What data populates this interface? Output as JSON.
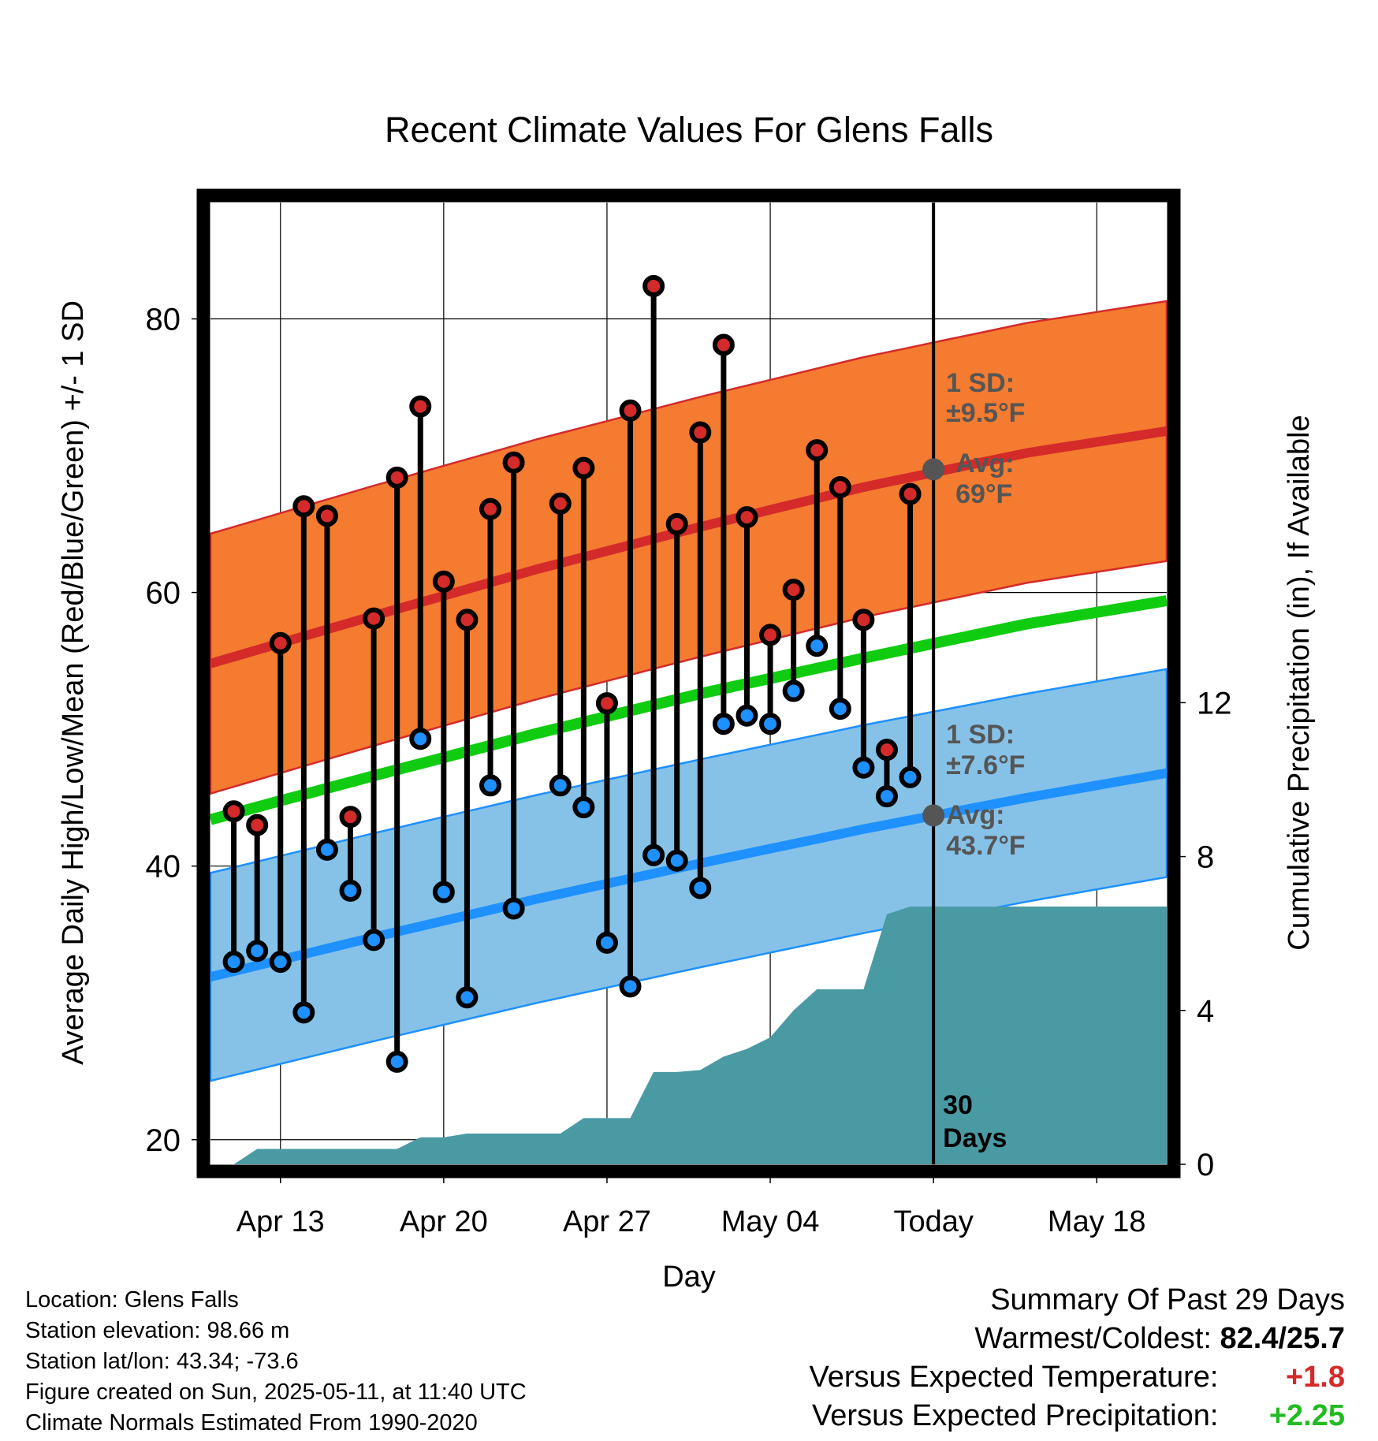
{
  "colors": {
    "high_band": "#f47b30",
    "high_mean": "#d42a2a",
    "low_band": "#86c2e8",
    "low_mean": "#1e90ff",
    "mean_line": "#10cc10",
    "precip": "#4a9aa4",
    "warm_text": "#d42a2a",
    "wet_text": "#22bb22",
    "annotation": "#555555"
  },
  "chart_data": {
    "type": "line",
    "title": "Recent Climate Values For Glens Falls",
    "xlabel": "Day",
    "ylabel": "Average Daily High/Low/Mean (Red/Blue/Green) +/- 1 SD",
    "y2label": "Cumulative Precipitation (in), If Available",
    "x_tick_labels": [
      "Apr 13",
      "Apr 20",
      "Apr 27",
      "May 04",
      "Today",
      "May 18"
    ],
    "x_tick_dates": [
      "2025-04-13",
      "2025-04-20",
      "2025-04-27",
      "2025-05-04",
      "2025-05-11",
      "2025-05-18"
    ],
    "x_range": [
      "2025-04-10",
      "2025-05-21"
    ],
    "ylim": [
      18.2,
      88.5
    ],
    "y_ticks": [
      20,
      40,
      60,
      80
    ],
    "y2lim": [
      0,
      25
    ],
    "y2_ticks": [
      0,
      4,
      8,
      12
    ],
    "grid": true,
    "today": "2025-05-11",
    "normals_dates": [
      "2025-04-10",
      "2025-04-17",
      "2025-04-24",
      "2025-05-01",
      "2025-05-08",
      "2025-05-15",
      "2025-05-21"
    ],
    "normal_high": [
      54.8,
      58.3,
      61.7,
      64.8,
      67.7,
      70.2,
      71.8
    ],
    "normal_high_sd": 9.5,
    "normal_low": [
      31.9,
      34.8,
      37.6,
      40.2,
      42.7,
      45.0,
      46.8
    ],
    "normal_low_sd": 7.6,
    "normal_mean": [
      43.4,
      46.6,
      49.7,
      52.6,
      55.2,
      57.7,
      59.4
    ],
    "series": [
      {
        "name": "Daily High",
        "dates": [
          "2025-04-11",
          "2025-04-12",
          "2025-04-13",
          "2025-04-14",
          "2025-04-15",
          "2025-04-16",
          "2025-04-17",
          "2025-04-18",
          "2025-04-19",
          "2025-04-20",
          "2025-04-21",
          "2025-04-22",
          "2025-04-23",
          "2025-04-25",
          "2025-04-26",
          "2025-04-27",
          "2025-04-28",
          "2025-04-29",
          "2025-04-30",
          "2025-05-01",
          "2025-05-02",
          "2025-05-03",
          "2025-05-04",
          "2025-05-05",
          "2025-05-06",
          "2025-05-07",
          "2025-05-08",
          "2025-05-09",
          "2025-05-10"
        ],
        "values": [
          44.0,
          43.0,
          56.3,
          66.3,
          65.6,
          43.6,
          58.1,
          68.4,
          73.6,
          60.8,
          58.0,
          66.1,
          69.5,
          66.5,
          69.1,
          51.9,
          73.3,
          82.4,
          65.0,
          71.7,
          78.1,
          65.5,
          56.9,
          60.2,
          70.4,
          67.7,
          58.0,
          48.5,
          67.2
        ]
      },
      {
        "name": "Daily Low",
        "dates": [
          "2025-04-11",
          "2025-04-12",
          "2025-04-13",
          "2025-04-14",
          "2025-04-15",
          "2025-04-16",
          "2025-04-17",
          "2025-04-18",
          "2025-04-19",
          "2025-04-20",
          "2025-04-21",
          "2025-04-22",
          "2025-04-23",
          "2025-04-25",
          "2025-04-26",
          "2025-04-27",
          "2025-04-28",
          "2025-04-29",
          "2025-04-30",
          "2025-05-01",
          "2025-05-02",
          "2025-05-03",
          "2025-05-04",
          "2025-05-05",
          "2025-05-06",
          "2025-05-07",
          "2025-05-08",
          "2025-05-09",
          "2025-05-10"
        ],
        "values": [
          33.0,
          33.8,
          33.0,
          29.3,
          41.2,
          38.2,
          34.6,
          25.7,
          49.3,
          38.1,
          30.4,
          45.9,
          36.9,
          45.9,
          44.3,
          34.4,
          31.2,
          40.8,
          40.4,
          38.4,
          50.4,
          51.0,
          50.4,
          52.8,
          56.1,
          51.5,
          47.2,
          45.1,
          46.5
        ]
      },
      {
        "name": "Cumulative Precipitation",
        "axis": "y2",
        "dates": [
          "2025-04-10",
          "2025-04-11",
          "2025-04-12",
          "2025-04-13",
          "2025-04-14",
          "2025-04-15",
          "2025-04-16",
          "2025-04-17",
          "2025-04-18",
          "2025-04-19",
          "2025-04-20",
          "2025-04-21",
          "2025-04-22",
          "2025-04-23",
          "2025-04-24",
          "2025-04-25",
          "2025-04-26",
          "2025-04-27",
          "2025-04-28",
          "2025-04-29",
          "2025-04-30",
          "2025-05-01",
          "2025-05-02",
          "2025-05-03",
          "2025-05-04",
          "2025-05-05",
          "2025-05-06",
          "2025-05-07",
          "2025-05-08",
          "2025-05-09",
          "2025-05-10",
          "2025-05-11",
          "2025-05-21"
        ],
        "values": [
          0.0,
          0.0,
          0.4,
          0.4,
          0.4,
          0.4,
          0.4,
          0.4,
          0.4,
          0.7,
          0.7,
          0.8,
          0.8,
          0.8,
          0.8,
          0.8,
          1.2,
          1.2,
          1.2,
          2.4,
          2.4,
          2.45,
          2.8,
          3.0,
          3.3,
          4.0,
          4.55,
          4.55,
          4.55,
          6.5,
          6.7,
          6.7,
          6.7
        ]
      }
    ],
    "annotations": {
      "high_sd_line1": "1 SD:",
      "high_sd_line2": "±9.5°F",
      "high_avg_line1": "Avg:",
      "high_avg_line2": "69°F",
      "low_sd_line1": "1 SD:",
      "low_sd_line2": "±7.6°F",
      "low_avg_line1": "Avg:",
      "low_avg_line2": "43.7°F",
      "days_line1": "30",
      "days_line2": "Days"
    }
  },
  "station": {
    "location": "Location: Glens Falls",
    "elevation": "Station elevation: 98.66 m",
    "latlon": "Station lat/lon: 43.34; -73.6",
    "created": "Figure created on Sun, 2025-05-11, at 11:40 UTC",
    "normals": "Climate Normals Estimated From 1990-2020"
  },
  "summary": {
    "heading": "Summary Of Past 29 Days",
    "warmest_label": "Warmest/Coldest:",
    "warmest_value": "82.4/25.7",
    "temp_label": "Versus Expected Temperature:",
    "temp_value": "+1.8",
    "precip_label": "Versus Expected Precipitation:",
    "precip_value": "+2.25"
  }
}
